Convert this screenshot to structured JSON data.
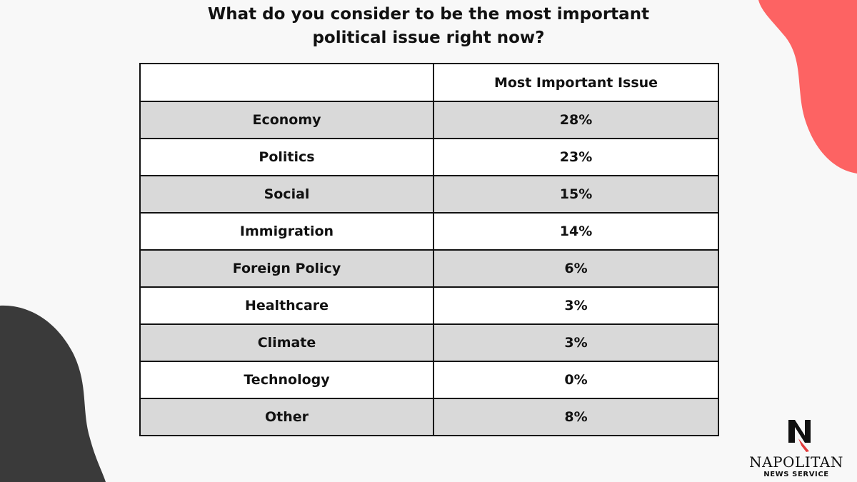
{
  "title": {
    "line1": "What do you consider to be the most important",
    "line2": "political issue right now?"
  },
  "chart_data": {
    "type": "table",
    "columns": [
      "",
      "Most Important Issue"
    ],
    "rows": [
      {
        "label": "Economy",
        "value": "28%"
      },
      {
        "label": "Politics",
        "value": "23%"
      },
      {
        "label": "Social",
        "value": "15%"
      },
      {
        "label": "Immigration",
        "value": "14%"
      },
      {
        "label": "Foreign Policy",
        "value": "6%"
      },
      {
        "label": "Healthcare",
        "value": "3%"
      },
      {
        "label": "Climate",
        "value": "3%"
      },
      {
        "label": "Technology",
        "value": "0%"
      },
      {
        "label": "Other",
        "value": "8%"
      }
    ]
  },
  "logo": {
    "name": "NAPOLITAN",
    "subtitle": "NEWS SERVICE"
  },
  "colors": {
    "background": "#f8f8f8",
    "accent_coral": "#fd6363",
    "accent_dark": "#3a3a3a",
    "row_shade": "#d9d9d9",
    "row_plain": "#ffffff"
  }
}
